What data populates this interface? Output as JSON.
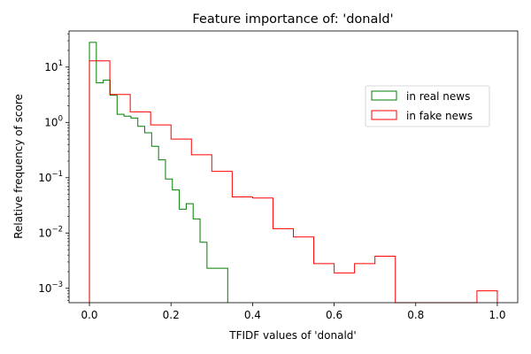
{
  "chart_data": {
    "type": "step",
    "title": "Feature importance of: 'donald'",
    "xlabel": "TFIDF values of 'donald'",
    "ylabel": "Relative frequency of score",
    "xlim": [
      -0.05,
      1.05
    ],
    "ylim": [
      0.00055,
      45
    ],
    "yscale": "log",
    "x_ticks": [
      {
        "value": 0.0,
        "label": "0.0"
      },
      {
        "value": 0.2,
        "label": "0.2"
      },
      {
        "value": 0.4,
        "label": "0.4"
      },
      {
        "value": 0.6,
        "label": "0.6"
      },
      {
        "value": 0.8,
        "label": "0.8"
      },
      {
        "value": 1.0,
        "label": "1.0"
      }
    ],
    "y_ticks": [
      {
        "value": 0.001,
        "base": "10",
        "exp": "−3"
      },
      {
        "value": 0.01,
        "base": "10",
        "exp": "−2"
      },
      {
        "value": 0.1,
        "base": "10",
        "exp": "−1"
      },
      {
        "value": 1,
        "base": "10",
        "exp": "0"
      },
      {
        "value": 10,
        "base": "10",
        "exp": "1"
      }
    ],
    "legend_position": "right",
    "series": [
      {
        "name": "in real news",
        "color": "#008000",
        "bin_start": 0.0,
        "bin_width": 0.01695,
        "values": [
          28,
          5.2,
          5.8,
          3.1,
          1.4,
          1.3,
          1.2,
          0.85,
          0.65,
          0.37,
          0.21,
          0.095,
          0.06,
          0.027,
          0.034,
          0.018,
          0.0068,
          0.0023,
          0.0023,
          0.0023
        ]
      },
      {
        "name": "in fake news",
        "color": "#ff0000",
        "bin_start": 0.0,
        "bin_width": 0.05,
        "values": [
          13,
          3.2,
          1.55,
          0.9,
          0.5,
          0.26,
          0.13,
          0.045,
          0.043,
          0.012,
          0.0085,
          0.0028,
          0.0019,
          0.0028,
          0.0038,
          0,
          0,
          0,
          0,
          0.0009
        ]
      }
    ]
  }
}
